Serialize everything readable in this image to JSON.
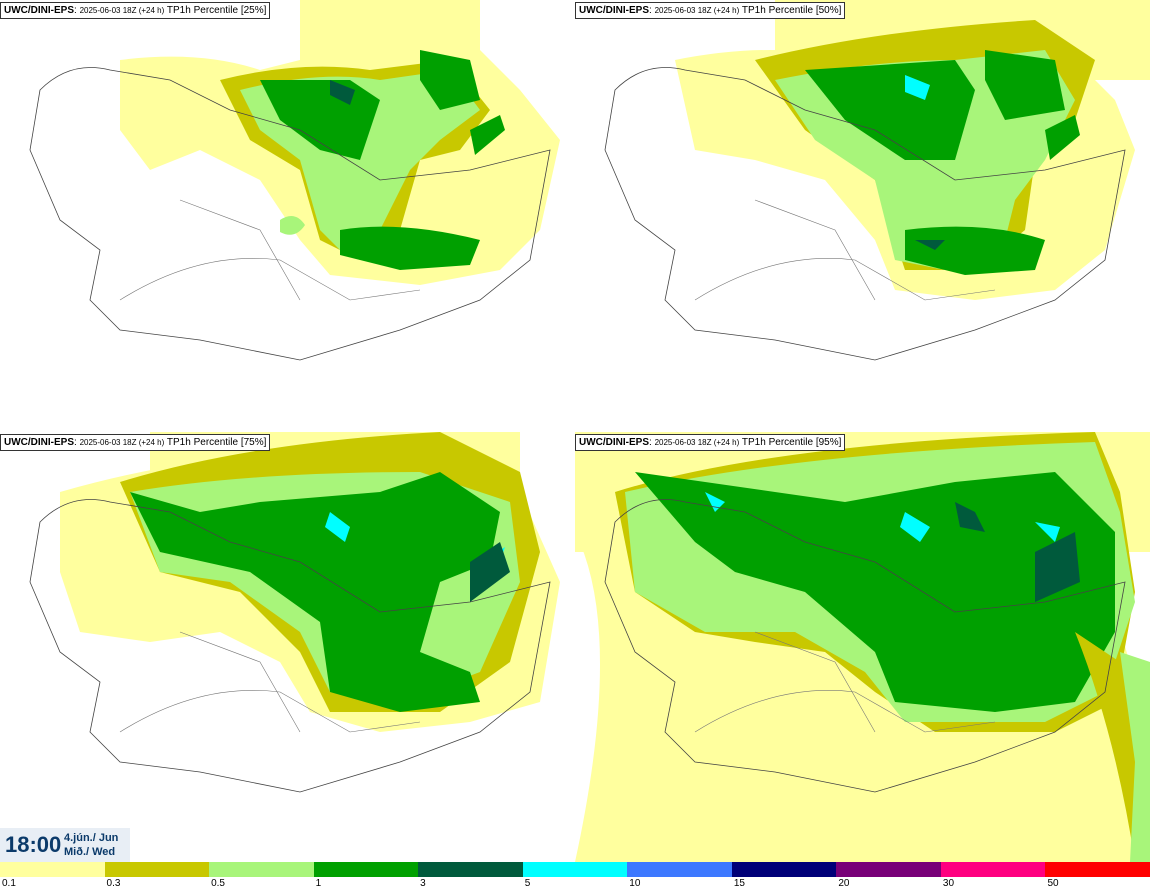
{
  "panels": [
    {
      "model": "UWC/DINI-EPS",
      "run": "2025-06-03 18Z (+24 h)",
      "field": "TP1h Percentile [25%]"
    },
    {
      "model": "UWC/DINI-EPS",
      "run": "2025-06-03 18Z (+24 h)",
      "field": "TP1h Percentile [50%]"
    },
    {
      "model": "UWC/DINI-EPS",
      "run": "2025-06-03 18Z (+24 h)",
      "field": "TP1h Percentile [75%]"
    },
    {
      "model": "UWC/DINI-EPS",
      "run": "2025-06-03 18Z (+24 h)",
      "field": "TP1h Percentile [95%]"
    }
  ],
  "valid_time": {
    "time": "18:00",
    "date_line1": "4.jún./ Jun",
    "date_line2": "Mið./ Wed"
  },
  "legend": {
    "ticks": [
      "0.1",
      "0.3",
      "0.5",
      "1",
      "3",
      "5",
      "10",
      "15",
      "20",
      "30",
      "50"
    ],
    "colors": [
      "#ffff9e",
      "#c8c800",
      "#a8f57a",
      "#00a000",
      "#005a3c",
      "#00ffff",
      "#3c78ff",
      "#000078",
      "#780078",
      "#ff0080",
      "#ff0000"
    ]
  },
  "palette": {
    "light_yellow": "#ffff9e",
    "olive": "#c8c800",
    "light_green": "#a8f57a",
    "green": "#00a000",
    "dark_green": "#005a3c",
    "cyan": "#00ffff"
  }
}
